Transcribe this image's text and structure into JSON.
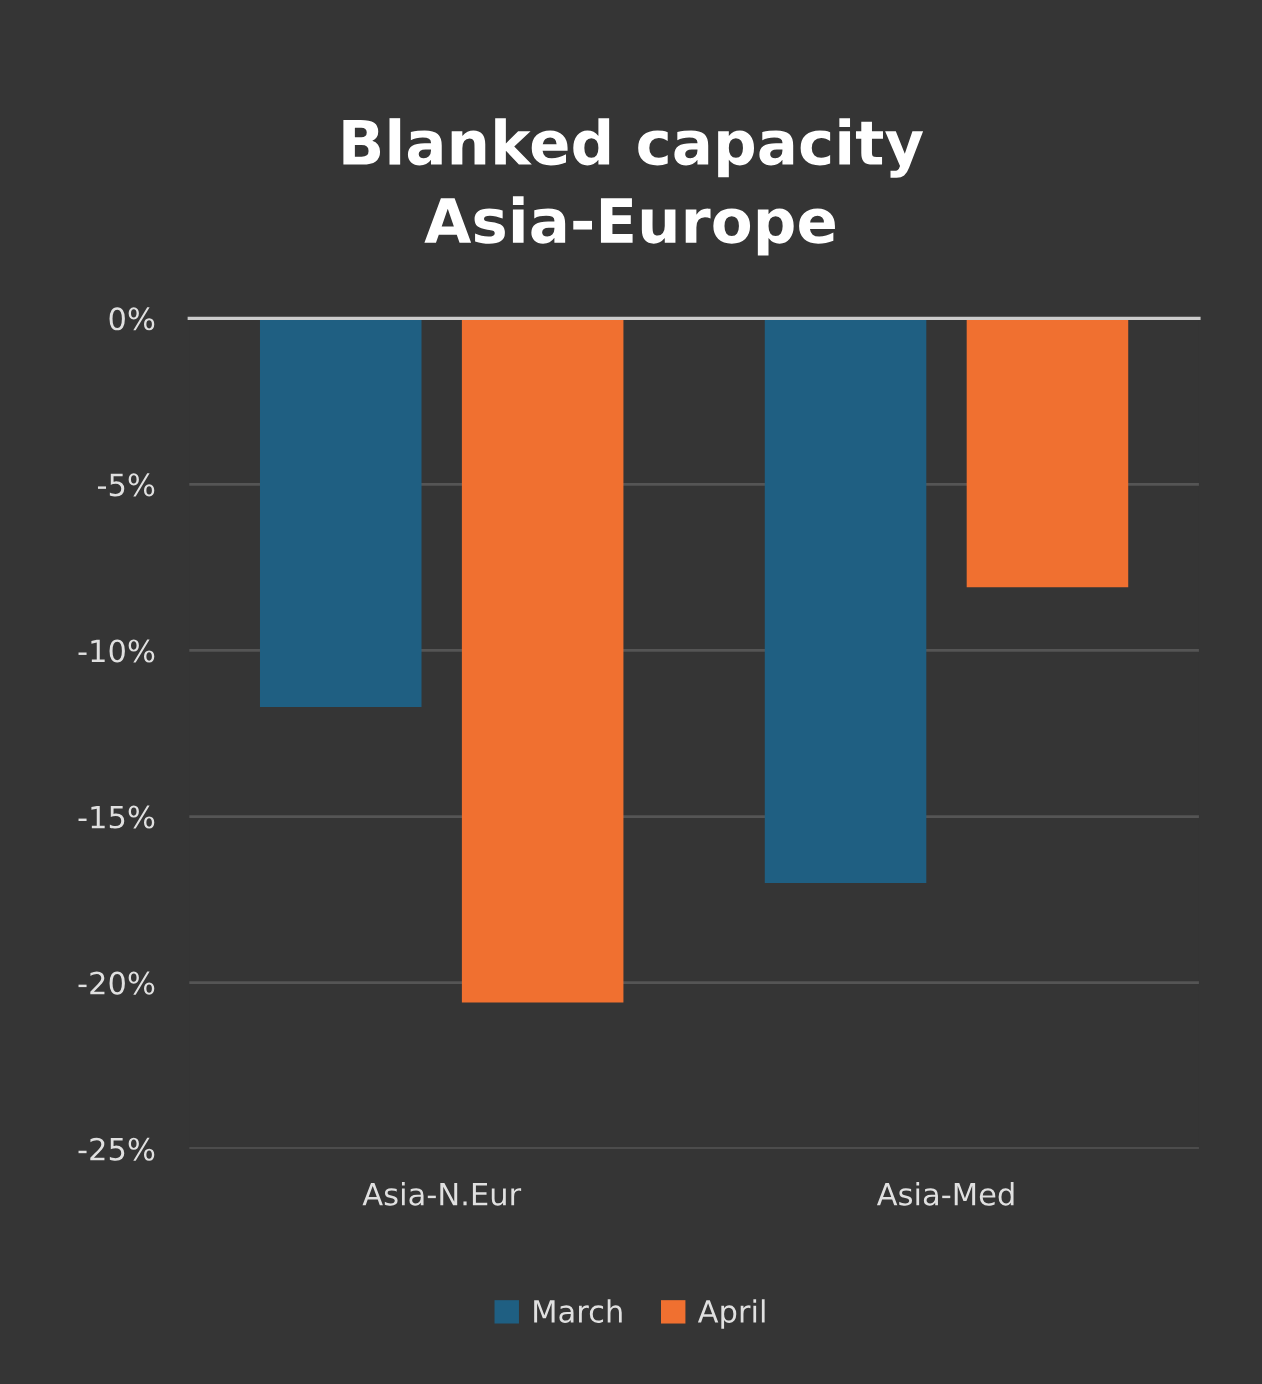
{
  "chart_data": {
    "type": "bar",
    "title": "Blanked capacity\nAsia-Europe",
    "categories": [
      "Asia-N.Eur",
      "Asia-Med"
    ],
    "series": [
      {
        "name": "March",
        "color": "#1f5f82",
        "values": [
          -11.7,
          -17.0
        ]
      },
      {
        "name": "April",
        "color": "#f07030",
        "values": [
          -20.6,
          -8.1
        ]
      }
    ],
    "ylim": [
      -25,
      0
    ],
    "yticks": [
      {
        "value": 0,
        "label": "0%"
      },
      {
        "value": -5,
        "label": "-5%"
      },
      {
        "value": -10,
        "label": "-10%"
      },
      {
        "value": -15,
        "label": "-15%"
      },
      {
        "value": -20,
        "label": "-20%"
      },
      {
        "value": -25,
        "label": "-25%"
      }
    ],
    "grid": "y",
    "legend": "bottom"
  }
}
